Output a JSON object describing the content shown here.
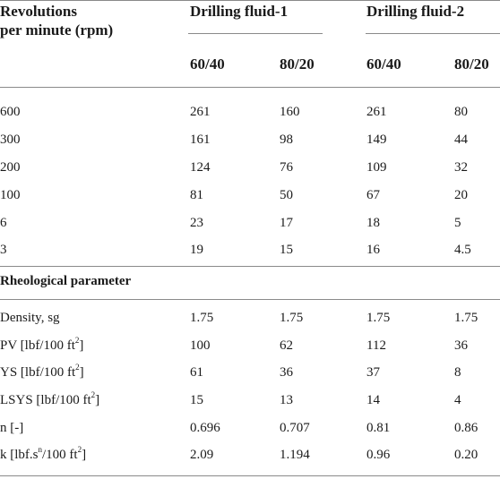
{
  "header": {
    "row_label_line1": "Revolutions",
    "row_label_line2": "per minute (rpm)",
    "group1": "Drilling fluid-1",
    "group2": "Drilling fluid-2",
    "sub_cols": [
      "60/40",
      "80/20",
      "60/40",
      "80/20"
    ]
  },
  "rpm_rows": [
    {
      "label": "600",
      "values": [
        "261",
        "160",
        "261",
        "80"
      ]
    },
    {
      "label": "300",
      "values": [
        "161",
        "98",
        "149",
        "44"
      ]
    },
    {
      "label": "200",
      "values": [
        "124",
        "76",
        "109",
        "32"
      ]
    },
    {
      "label": "100",
      "values": [
        "81",
        "50",
        "67",
        "20"
      ]
    },
    {
      "label": "6",
      "values": [
        "23",
        "17",
        "18",
        "5"
      ]
    },
    {
      "label": "3",
      "values": [
        "19",
        "15",
        "16",
        "4.5"
      ]
    }
  ],
  "section_title": "Rheological parameter",
  "param_rows": [
    {
      "label": "Density, sg",
      "values": [
        "1.75",
        "1.75",
        "1.75",
        "1.75"
      ]
    },
    {
      "label_pre": "PV [lbf/100 ft",
      "label_sup": "2",
      "label_post": "]",
      "values": [
        "100",
        "62",
        "112",
        "36"
      ]
    },
    {
      "label_pre": "YS [lbf/100 ft",
      "label_sup": "2",
      "label_post": "]",
      "values": [
        "61",
        "36",
        "37",
        "8"
      ]
    },
    {
      "label_pre": "LSYS [lbf/100 ft",
      "label_sup": "2",
      "label_post": "]",
      "values": [
        "15",
        "13",
        "14",
        "4"
      ]
    },
    {
      "label": "n [-]",
      "values": [
        "0.696",
        "0.707",
        "0.81",
        "0.86"
      ]
    },
    {
      "label_pre": "k [lbf.s",
      "label_sup": "n",
      "label_mid": "/100 ft",
      "label_sup2": "2",
      "label_post": "]",
      "values": [
        "2.09",
        "1.194",
        "0.96",
        "0.20"
      ]
    }
  ]
}
